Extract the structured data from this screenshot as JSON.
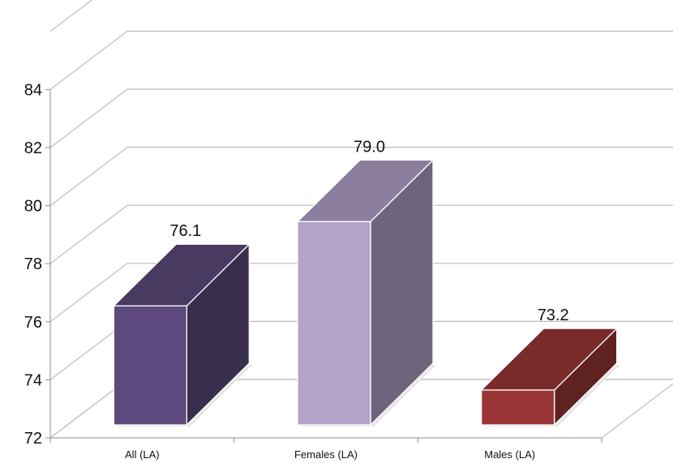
{
  "chart_data": {
    "type": "bar",
    "categories": [
      "All (LA)",
      "Females (LA)",
      "Males (LA)"
    ],
    "values": [
      76.1,
      79.0,
      73.2
    ],
    "data_labels": [
      "76.1",
      "79.0",
      "73.2"
    ],
    "ylim": [
      72,
      84
    ],
    "yticks": [
      72,
      74,
      76,
      78,
      80,
      82,
      84
    ],
    "grid": true,
    "three_d": true,
    "title": "",
    "xlabel": "",
    "ylabel": "",
    "colors": [
      "#5e4a7c",
      "#b3a2c9",
      "#9b3636"
    ]
  }
}
